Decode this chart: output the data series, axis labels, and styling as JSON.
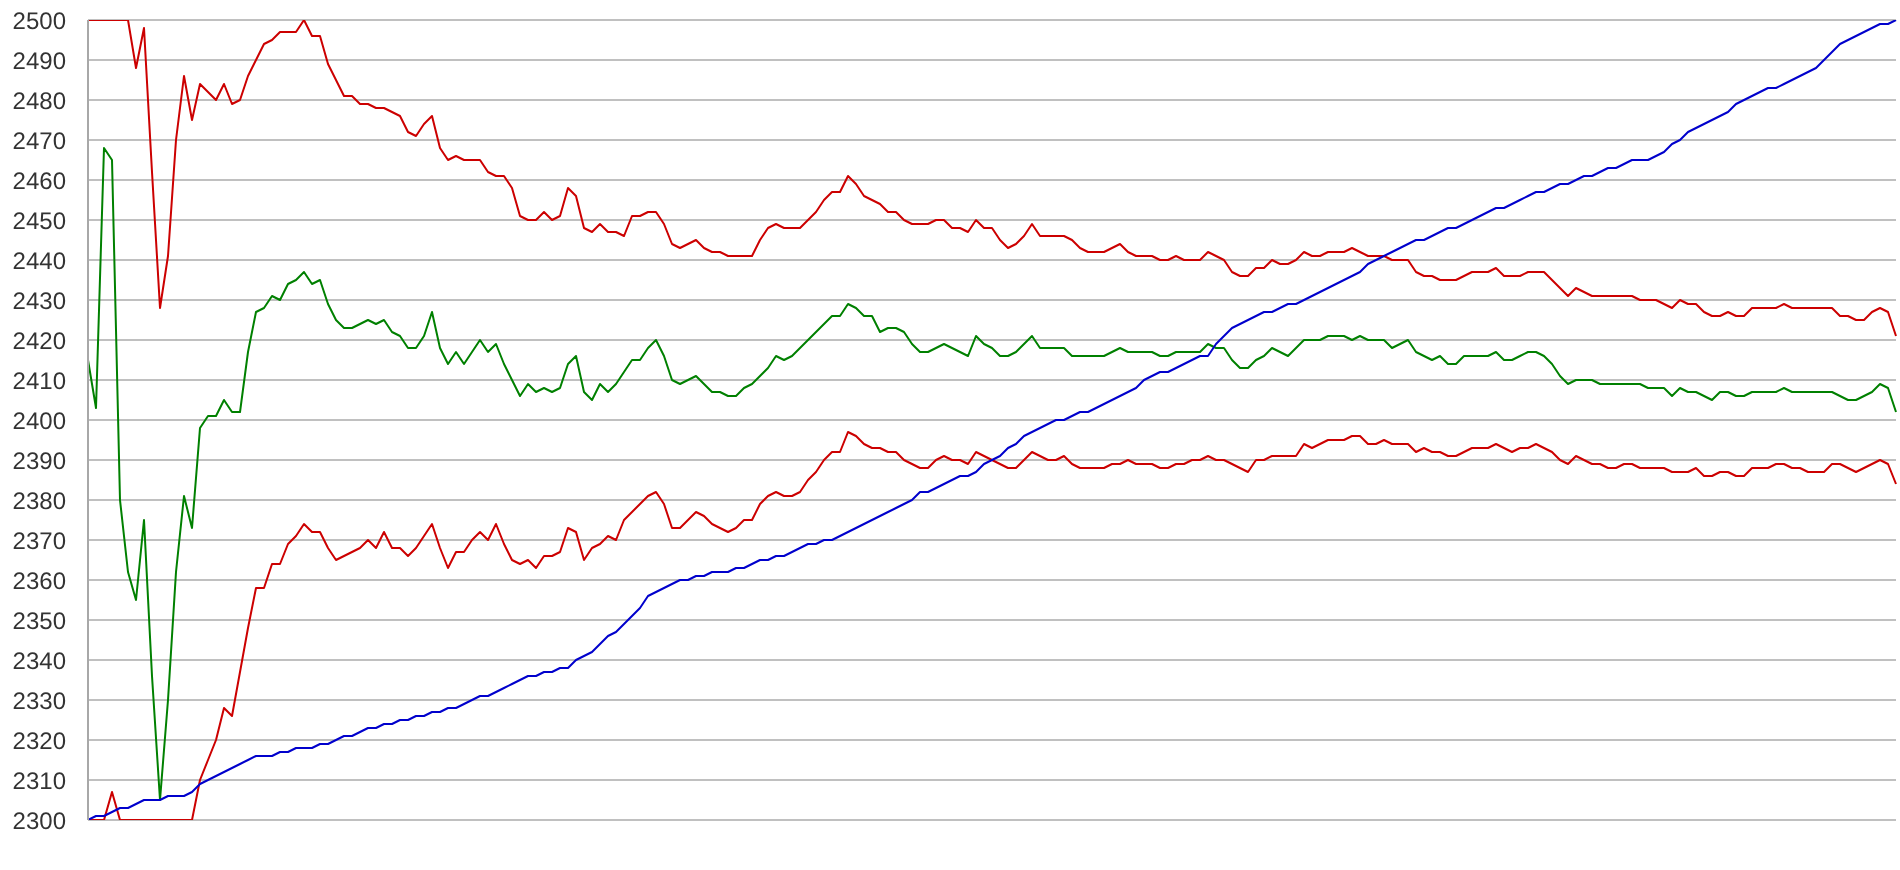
{
  "chart_data": {
    "type": "line",
    "categories": [
      null,
      null,
      null,
      null,
      null,
      null,
      null,
      null,
      null,
      null,
      null,
      null,
      null,
      null,
      null,
      null,
      null,
      null,
      null,
      null,
      null,
      null,
      null,
      null,
      null,
      null,
      null,
      null,
      null,
      null,
      null,
      null,
      null,
      null,
      null,
      null,
      null,
      null,
      null,
      null,
      null,
      null,
      null,
      null,
      null,
      null,
      null,
      null,
      null,
      null,
      null,
      null,
      null,
      null,
      null,
      null,
      null,
      null,
      null,
      null,
      null,
      null,
      null,
      null,
      null,
      null,
      null,
      null,
      null,
      null,
      null,
      null,
      null,
      null,
      null,
      null,
      null,
      null,
      null,
      null,
      null,
      null,
      null,
      null,
      null,
      null,
      null,
      null,
      null,
      null,
      null,
      null,
      null,
      null,
      null,
      null,
      null,
      null,
      null,
      null,
      null,
      null,
      null,
      null,
      null,
      null,
      null,
      null,
      null,
      null,
      null,
      null,
      null,
      null,
      null,
      null,
      null,
      null,
      null,
      null,
      null,
      null,
      null,
      null,
      null,
      null,
      null,
      null,
      null,
      null,
      null,
      null,
      null,
      null,
      null,
      null,
      null,
      null,
      null,
      null,
      null,
      null,
      null,
      null,
      null,
      null,
      null,
      null,
      null,
      null,
      null,
      null,
      null,
      null,
      null,
      null,
      null,
      null,
      null,
      null,
      null,
      null,
      null,
      null,
      null,
      null,
      null,
      null,
      null,
      null,
      null,
      null,
      null,
      null,
      null,
      null,
      null,
      null,
      null,
      null,
      null,
      null,
      null,
      null,
      null,
      null,
      null,
      null,
      null,
      null,
      null,
      null,
      null,
      null,
      null,
      null,
      null,
      null,
      null,
      null,
      null,
      null,
      null,
      null,
      null,
      null,
      null,
      null,
      null,
      null,
      null,
      null,
      null,
      null,
      null,
      null,
      null,
      null,
      null,
      null,
      null,
      null,
      null,
      null,
      null,
      null,
      null
    ],
    "series": [
      {
        "color": "#cc0000",
        "values": [
          2500,
          2500,
          2500,
          2500,
          2500,
          2500,
          2488,
          2498,
          2462,
          2428,
          2441,
          2470,
          2486,
          2475,
          2484,
          2482,
          2480,
          2484,
          2479,
          2480,
          2486,
          2490,
          2494,
          2495,
          2497,
          2497,
          2497,
          2500,
          2496,
          2496,
          2489,
          2485,
          2481,
          2481,
          2479,
          2479,
          2478,
          2478,
          2477,
          2476,
          2472,
          2471,
          2474,
          2476,
          2468,
          2465,
          2466,
          2465,
          2465,
          2465,
          2462,
          2461,
          2461,
          2458,
          2451,
          2450,
          2450,
          2452,
          2450,
          2451,
          2458,
          2456,
          2448,
          2447,
          2449,
          2447,
          2447,
          2446,
          2451,
          2451,
          2452,
          2452,
          2449,
          2444,
          2443,
          2444,
          2445,
          2443,
          2442,
          2442,
          2441,
          2441,
          2441,
          2441,
          2445,
          2448,
          2449,
          2448,
          2448,
          2448,
          2450,
          2452,
          2455,
          2457,
          2457,
          2461,
          2459,
          2456,
          2455,
          2454,
          2452,
          2452,
          2450,
          2449,
          2449,
          2449,
          2450,
          2450,
          2448,
          2448,
          2447,
          2450,
          2448,
          2448,
          2445,
          2443,
          2444,
          2446,
          2449,
          2446,
          2446,
          2446,
          2446,
          2445,
          2443,
          2442,
          2442,
          2442,
          2443,
          2444,
          2442,
          2441,
          2441,
          2441,
          2440,
          2440,
          2441,
          2440,
          2440,
          2440,
          2442,
          2441,
          2440,
          2437,
          2436,
          2436,
          2438,
          2438,
          2440,
          2439,
          2439,
          2440,
          2442,
          2441,
          2441,
          2442,
          2442,
          2442,
          2443,
          2442,
          2441,
          2441,
          2441,
          2440,
          2440,
          2440,
          2437,
          2436,
          2436,
          2435,
          2435,
          2435,
          2436,
          2437,
          2437,
          2437,
          2438,
          2436,
          2436,
          2436,
          2437,
          2437,
          2437,
          2435,
          2433,
          2431,
          2433,
          2432,
          2431,
          2431,
          2431,
          2431,
          2431,
          2431,
          2430,
          2430,
          2430,
          2429,
          2428,
          2430,
          2429,
          2429,
          2427,
          2426,
          2426,
          2427,
          2426,
          2426,
          2428,
          2428,
          2428,
          2428,
          2429,
          2428,
          2428,
          2428,
          2428,
          2428,
          2428,
          2426,
          2426,
          2425,
          2425,
          2427,
          2428,
          2427,
          2421
        ]
      },
      {
        "color": "#008000",
        "values": [
          2415,
          2403,
          2468,
          2465,
          2380,
          2362,
          2355,
          2375,
          2336,
          2305,
          2330,
          2362,
          2381,
          2373,
          2398,
          2401,
          2401,
          2405,
          2402,
          2402,
          2417,
          2427,
          2428,
          2431,
          2430,
          2434,
          2435,
          2437,
          2434,
          2435,
          2429,
          2425,
          2423,
          2423,
          2424,
          2425,
          2424,
          2425,
          2422,
          2421,
          2418,
          2418,
          2421,
          2427,
          2418,
          2414,
          2417,
          2414,
          2417,
          2420,
          2417,
          2419,
          2414,
          2410,
          2406,
          2409,
          2407,
          2408,
          2407,
          2408,
          2414,
          2416,
          2407,
          2405,
          2409,
          2407,
          2409,
          2412,
          2415,
          2415,
          2418,
          2420,
          2416,
          2410,
          2409,
          2410,
          2411,
          2409,
          2407,
          2407,
          2406,
          2406,
          2408,
          2409,
          2411,
          2413,
          2416,
          2415,
          2416,
          2418,
          2420,
          2422,
          2424,
          2426,
          2426,
          2429,
          2428,
          2426,
          2426,
          2422,
          2423,
          2423,
          2422,
          2419,
          2417,
          2417,
          2418,
          2419,
          2418,
          2417,
          2416,
          2421,
          2419,
          2418,
          2416,
          2416,
          2417,
          2419,
          2421,
          2418,
          2418,
          2418,
          2418,
          2416,
          2416,
          2416,
          2416,
          2416,
          2417,
          2418,
          2417,
          2417,
          2417,
          2417,
          2416,
          2416,
          2417,
          2417,
          2417,
          2417,
          2419,
          2418,
          2418,
          2415,
          2413,
          2413,
          2415,
          2416,
          2418,
          2417,
          2416,
          2418,
          2420,
          2420,
          2420,
          2421,
          2421,
          2421,
          2420,
          2421,
          2420,
          2420,
          2420,
          2418,
          2419,
          2420,
          2417,
          2416,
          2415,
          2416,
          2414,
          2414,
          2416,
          2416,
          2416,
          2416,
          2417,
          2415,
          2415,
          2416,
          2417,
          2417,
          2416,
          2414,
          2411,
          2409,
          2410,
          2410,
          2410,
          2409,
          2409,
          2409,
          2409,
          2409,
          2409,
          2408,
          2408,
          2408,
          2406,
          2408,
          2407,
          2407,
          2406,
          2405,
          2407,
          2407,
          2406,
          2406,
          2407,
          2407,
          2407,
          2407,
          2408,
          2407,
          2407,
          2407,
          2407,
          2407,
          2407,
          2406,
          2405,
          2405,
          2406,
          2407,
          2409,
          2408,
          2402
        ]
      },
      {
        "color": "#cc0000",
        "values": [
          2300,
          2300,
          2300,
          2307,
          2300,
          2300,
          2300,
          2300,
          2300,
          2300,
          2300,
          2300,
          2300,
          2300,
          2310,
          2315,
          2320,
          2328,
          2326,
          2337,
          2348,
          2358,
          2358,
          2364,
          2364,
          2369,
          2371,
          2374,
          2372,
          2372,
          2368,
          2365,
          2366,
          2367,
          2368,
          2370,
          2368,
          2372,
          2368,
          2368,
          2366,
          2368,
          2371,
          2374,
          2368,
          2363,
          2367,
          2367,
          2370,
          2372,
          2370,
          2374,
          2369,
          2365,
          2364,
          2365,
          2363,
          2366,
          2366,
          2367,
          2373,
          2372,
          2365,
          2368,
          2369,
          2371,
          2370,
          2375,
          2377,
          2379,
          2381,
          2382,
          2379,
          2373,
          2373,
          2375,
          2377,
          2376,
          2374,
          2373,
          2372,
          2373,
          2375,
          2375,
          2379,
          2381,
          2382,
          2381,
          2381,
          2382,
          2385,
          2387,
          2390,
          2392,
          2392,
          2397,
          2396,
          2394,
          2393,
          2393,
          2392,
          2392,
          2390,
          2389,
          2388,
          2388,
          2390,
          2391,
          2390,
          2390,
          2389,
          2392,
          2391,
          2390,
          2389,
          2388,
          2388,
          2390,
          2392,
          2391,
          2390,
          2390,
          2391,
          2389,
          2388,
          2388,
          2388,
          2388,
          2389,
          2389,
          2390,
          2389,
          2389,
          2389,
          2388,
          2388,
          2389,
          2389,
          2390,
          2390,
          2391,
          2390,
          2390,
          2389,
          2388,
          2387,
          2390,
          2390,
          2391,
          2391,
          2391,
          2391,
          2394,
          2393,
          2394,
          2395,
          2395,
          2395,
          2396,
          2396,
          2394,
          2394,
          2395,
          2394,
          2394,
          2394,
          2392,
          2393,
          2392,
          2392,
          2391,
          2391,
          2392,
          2393,
          2393,
          2393,
          2394,
          2393,
          2392,
          2393,
          2393,
          2394,
          2393,
          2392,
          2390,
          2389,
          2391,
          2390,
          2389,
          2389,
          2388,
          2388,
          2389,
          2389,
          2388,
          2388,
          2388,
          2388,
          2387,
          2387,
          2387,
          2388,
          2386,
          2386,
          2387,
          2387,
          2386,
          2386,
          2388,
          2388,
          2388,
          2389,
          2389,
          2388,
          2388,
          2387,
          2387,
          2387,
          2389,
          2389,
          2388,
          2387,
          2388,
          2389,
          2390,
          2389,
          2384
        ]
      },
      {
        "color": "#0000cc",
        "values": [
          2300,
          2301,
          2301,
          2302,
          2303,
          2303,
          2304,
          2305,
          2305,
          2305,
          2306,
          2306,
          2306,
          2307,
          2309,
          2310,
          2311,
          2312,
          2313,
          2314,
          2315,
          2316,
          2316,
          2316,
          2317,
          2317,
          2318,
          2318,
          2318,
          2319,
          2319,
          2320,
          2321,
          2321,
          2322,
          2323,
          2323,
          2324,
          2324,
          2325,
          2325,
          2326,
          2326,
          2327,
          2327,
          2328,
          2328,
          2329,
          2330,
          2331,
          2331,
          2332,
          2333,
          2334,
          2335,
          2336,
          2336,
          2337,
          2337,
          2338,
          2338,
          2340,
          2341,
          2342,
          2344,
          2346,
          2347,
          2349,
          2351,
          2353,
          2356,
          2357,
          2358,
          2359,
          2360,
          2360,
          2361,
          2361,
          2362,
          2362,
          2362,
          2363,
          2363,
          2364,
          2365,
          2365,
          2366,
          2366,
          2367,
          2368,
          2369,
          2369,
          2370,
          2370,
          2371,
          2372,
          2373,
          2374,
          2375,
          2376,
          2377,
          2378,
          2379,
          2380,
          2382,
          2382,
          2383,
          2384,
          2385,
          2386,
          2386,
          2387,
          2389,
          2390,
          2391,
          2393,
          2394,
          2396,
          2397,
          2398,
          2399,
          2400,
          2400,
          2401,
          2402,
          2402,
          2403,
          2404,
          2405,
          2406,
          2407,
          2408,
          2410,
          2411,
          2412,
          2412,
          2413,
          2414,
          2415,
          2416,
          2416,
          2419,
          2421,
          2423,
          2424,
          2425,
          2426,
          2427,
          2427,
          2428,
          2429,
          2429,
          2430,
          2431,
          2432,
          2433,
          2434,
          2435,
          2436,
          2437,
          2439,
          2440,
          2441,
          2442,
          2443,
          2444,
          2445,
          2445,
          2446,
          2447,
          2448,
          2448,
          2449,
          2450,
          2451,
          2452,
          2453,
          2453,
          2454,
          2455,
          2456,
          2457,
          2457,
          2458,
          2459,
          2459,
          2460,
          2461,
          2461,
          2462,
          2463,
          2463,
          2464,
          2465,
          2465,
          2465,
          2466,
          2467,
          2469,
          2470,
          2472,
          2473,
          2474,
          2475,
          2476,
          2477,
          2479,
          2480,
          2481,
          2482,
          2483,
          2483,
          2484,
          2485,
          2486,
          2487,
          2488,
          2490,
          2492,
          2494,
          2495,
          2496,
          2497,
          2498,
          2499,
          2499,
          2500
        ]
      }
    ],
    "ylim": [
      2300,
      2500
    ],
    "yticks": [
      2300,
      2310,
      2320,
      2330,
      2340,
      2350,
      2360,
      2370,
      2380,
      2390,
      2400,
      2410,
      2420,
      2430,
      2440,
      2450,
      2460,
      2470,
      2480,
      2490,
      2500
    ],
    "grid": "y",
    "tick_labels": "y",
    "marker": "none"
  }
}
